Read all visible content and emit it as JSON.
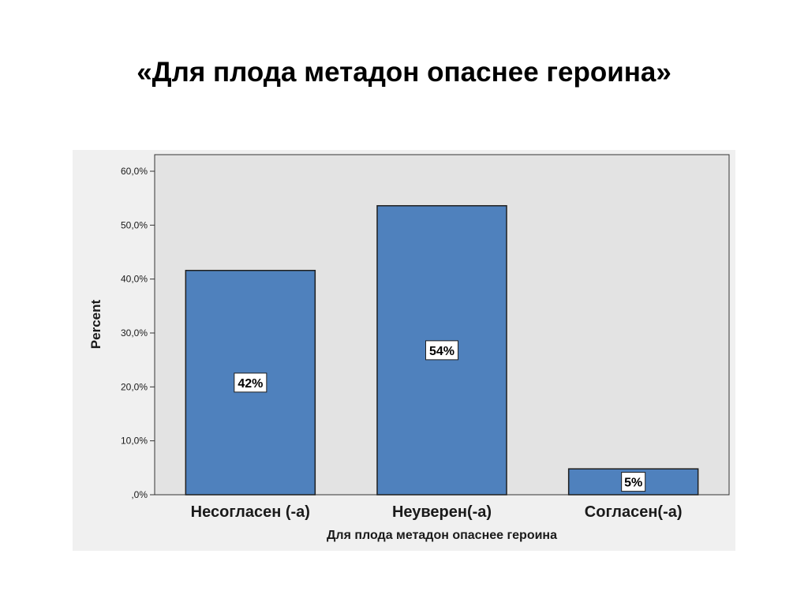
{
  "slide": {
    "title": "«Для плода метадон опаснее героина»"
  },
  "colors": {
    "bar": "#4f81bd",
    "plot_background": "#e3e3e3",
    "outer_background": "#f0f0f0",
    "bar_stroke": "#1f1f1f"
  },
  "chart_data": {
    "type": "bar",
    "title": "",
    "xlabel": "Для плода метадон опаснее героина",
    "ylabel": "Percent",
    "categories": [
      "Несогласен (-а)",
      "Неуверен(-а)",
      "Согласен(-а)"
    ],
    "values": [
      41.6,
      53.6,
      4.8
    ],
    "data_labels": [
      "42%",
      "54%",
      "5%"
    ],
    "ylim": [
      0,
      60
    ],
    "yticks": [
      0,
      10,
      20,
      30,
      40,
      50,
      60
    ],
    "ytick_labels": [
      ",0%",
      "10,0%",
      "20,0%",
      "30,0%",
      "40,0%",
      "50,0%",
      "60,0%"
    ],
    "grid": false,
    "legend": "none"
  }
}
